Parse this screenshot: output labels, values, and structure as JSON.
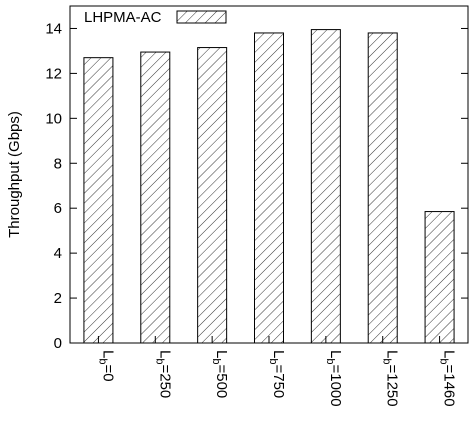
{
  "chart_data": {
    "type": "bar",
    "title": "",
    "xlabel": "",
    "ylabel": "Throughput (Gbps)",
    "ylim": [
      0,
      15
    ],
    "yticks": [
      0,
      2,
      4,
      6,
      8,
      10,
      12,
      14
    ],
    "categories": [
      {
        "base": "L",
        "sub": "b",
        "suffix": "=0"
      },
      {
        "base": "L",
        "sub": "b",
        "suffix": "=250"
      },
      {
        "base": "L",
        "sub": "b",
        "suffix": "=500"
      },
      {
        "base": "L",
        "sub": "b",
        "suffix": "=750"
      },
      {
        "base": "L",
        "sub": "b",
        "suffix": "=1000"
      },
      {
        "base": "L",
        "sub": "b",
        "suffix": "=1250"
      },
      {
        "base": "L",
        "sub": "b",
        "suffix": "=1460"
      }
    ],
    "series": [
      {
        "name": "LHPMA-AC",
        "values": [
          12.7,
          12.95,
          13.15,
          13.8,
          13.95,
          13.8,
          5.85
        ]
      }
    ],
    "grid": false,
    "legend_position": "top-left",
    "bar_fill": "diagonal-hatch"
  }
}
